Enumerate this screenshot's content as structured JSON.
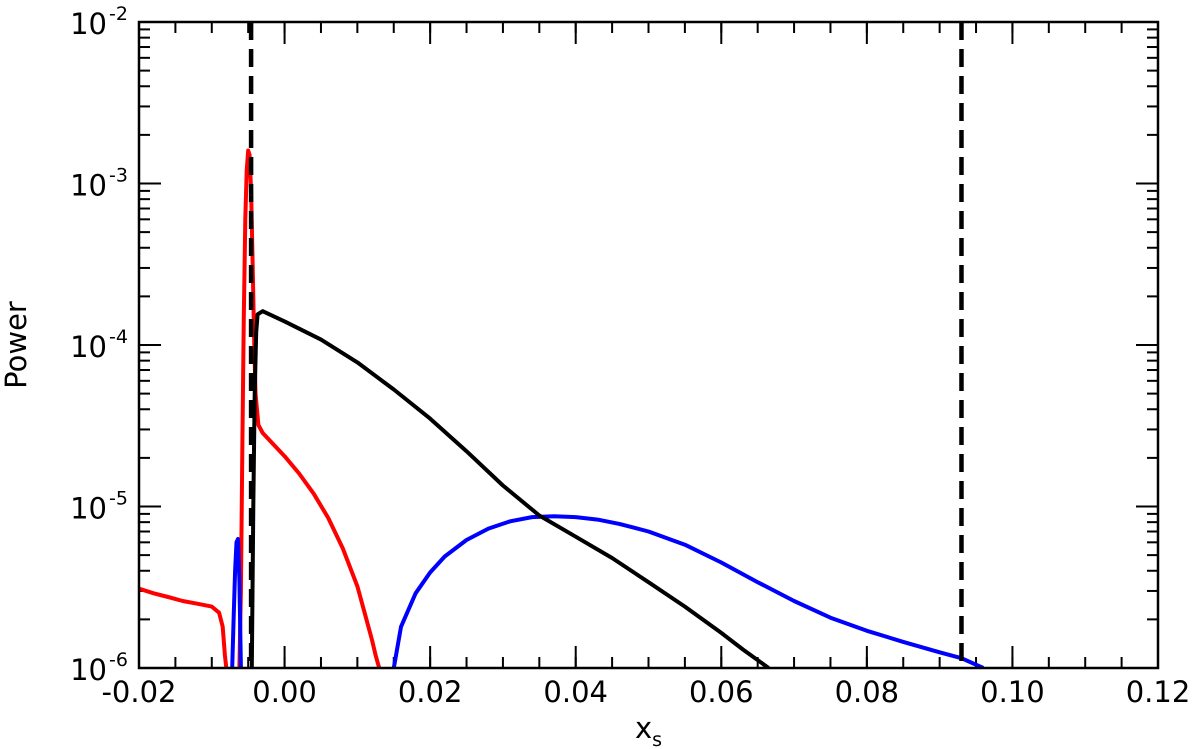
{
  "chart_data": {
    "type": "line",
    "xlabel": "x",
    "xlabel_sub": "s",
    "ylabel": "Power",
    "xlim": [
      -0.02,
      0.12
    ],
    "ylim": [
      1e-06,
      0.01
    ],
    "yscale": "log",
    "grid": false,
    "x_ticks": [
      "-0.02",
      "0.00",
      "0.02",
      "0.04",
      "0.06",
      "0.08",
      "0.10",
      "0.12"
    ],
    "y_ticks": [
      {
        "base": "10",
        "exp": "-6"
      },
      {
        "base": "10",
        "exp": "-5"
      },
      {
        "base": "10",
        "exp": "-4"
      },
      {
        "base": "10",
        "exp": "-3"
      },
      {
        "base": "10",
        "exp": "-2"
      }
    ],
    "series": [
      {
        "color": "#ff0000",
        "style": "solid",
        "points": [
          [
            -0.02,
            3.1e-06
          ],
          [
            -0.018,
            2.9e-06
          ],
          [
            -0.016,
            2.75e-06
          ],
          [
            -0.014,
            2.6e-06
          ],
          [
            -0.012,
            2.5e-06
          ],
          [
            -0.01,
            2.4e-06
          ],
          [
            -0.009,
            2.2e-06
          ],
          [
            -0.0085,
            1.8e-06
          ],
          [
            -0.0082,
            1.2e-06
          ],
          [
            -0.008,
            1e-06
          ],
          null,
          [
            -0.0062,
            1e-06
          ],
          [
            -0.006,
            3e-06
          ],
          [
            -0.0058,
            2.5e-05
          ],
          [
            -0.0056,
            0.00015
          ],
          [
            -0.0054,
            0.0006
          ],
          [
            -0.0052,
            0.0012
          ],
          [
            -0.005,
            0.0016
          ],
          [
            -0.0048,
            0.0015
          ],
          [
            -0.0046,
            0.0009
          ],
          [
            -0.0044,
            0.00035
          ],
          [
            -0.0042,
            0.00012
          ],
          [
            -0.004,
            5e-05
          ],
          [
            -0.0036,
            3.2e-05
          ],
          [
            -0.003,
            2.85e-05
          ],
          [
            -0.002,
            2.55e-05
          ],
          [
            0.0,
            2.05e-05
          ],
          [
            0.002,
            1.6e-05
          ],
          [
            0.004,
            1.2e-05
          ],
          [
            0.006,
            8.5e-06
          ],
          [
            0.008,
            5.5e-06
          ],
          [
            0.01,
            3.2e-06
          ],
          [
            0.011,
            2.2e-06
          ],
          [
            0.012,
            1.5e-06
          ],
          [
            0.0125,
            1.2e-06
          ],
          [
            0.013,
            1e-06
          ]
        ]
      },
      {
        "color": "#0000ff",
        "style": "solid",
        "points": [
          [
            -0.0072,
            1e-06
          ],
          [
            -0.007,
            2e-06
          ],
          [
            -0.0068,
            4e-06
          ],
          [
            -0.0066,
            6e-06
          ],
          [
            -0.0064,
            6.3e-06
          ],
          [
            -0.0062,
            3.5e-06
          ],
          [
            -0.006,
            1e-06
          ],
          null,
          [
            0.015,
            1e-06
          ],
          [
            0.016,
            1.8e-06
          ],
          [
            0.018,
            2.9e-06
          ],
          [
            0.02,
            3.9e-06
          ],
          [
            0.022,
            4.9e-06
          ],
          [
            0.025,
            6.2e-06
          ],
          [
            0.028,
            7.3e-06
          ],
          [
            0.031,
            8.1e-06
          ],
          [
            0.034,
            8.6e-06
          ],
          [
            0.037,
            8.7e-06
          ],
          [
            0.04,
            8.6e-06
          ],
          [
            0.043,
            8.3e-06
          ],
          [
            0.046,
            7.8e-06
          ],
          [
            0.05,
            7e-06
          ],
          [
            0.055,
            5.8e-06
          ],
          [
            0.06,
            4.5e-06
          ],
          [
            0.065,
            3.4e-06
          ],
          [
            0.07,
            2.6e-06
          ],
          [
            0.075,
            2.05e-06
          ],
          [
            0.08,
            1.7e-06
          ],
          [
            0.085,
            1.45e-06
          ],
          [
            0.09,
            1.25e-06
          ],
          [
            0.093,
            1.15e-06
          ],
          [
            0.096,
            1e-06
          ]
        ]
      },
      {
        "color": "#000000",
        "style": "solid",
        "points": [
          [
            -0.0045,
            1e-06
          ],
          [
            -0.0043,
            1e-05
          ],
          [
            -0.0041,
            5e-05
          ],
          [
            -0.0039,
            0.00012
          ],
          [
            -0.0037,
            0.000155
          ],
          [
            -0.003,
            0.000162
          ],
          [
            0.0,
            0.00014
          ],
          [
            0.005,
            0.000108
          ],
          [
            0.01,
            7.8e-05
          ],
          [
            0.015,
            5.3e-05
          ],
          [
            0.02,
            3.5e-05
          ],
          [
            0.025,
            2.2e-05
          ],
          [
            0.03,
            1.35e-05
          ],
          [
            0.035,
            8.8e-06
          ],
          [
            0.04,
            6.5e-06
          ],
          [
            0.045,
            4.8e-06
          ],
          [
            0.05,
            3.4e-06
          ],
          [
            0.055,
            2.4e-06
          ],
          [
            0.06,
            1.65e-06
          ],
          [
            0.063,
            1.3e-06
          ],
          [
            0.0665,
            1e-06
          ]
        ]
      }
    ],
    "vlines": [
      {
        "x": -0.0046,
        "color": "#000000",
        "style": "dashed"
      },
      {
        "x": 0.093,
        "color": "#000000",
        "style": "dashed"
      }
    ]
  }
}
